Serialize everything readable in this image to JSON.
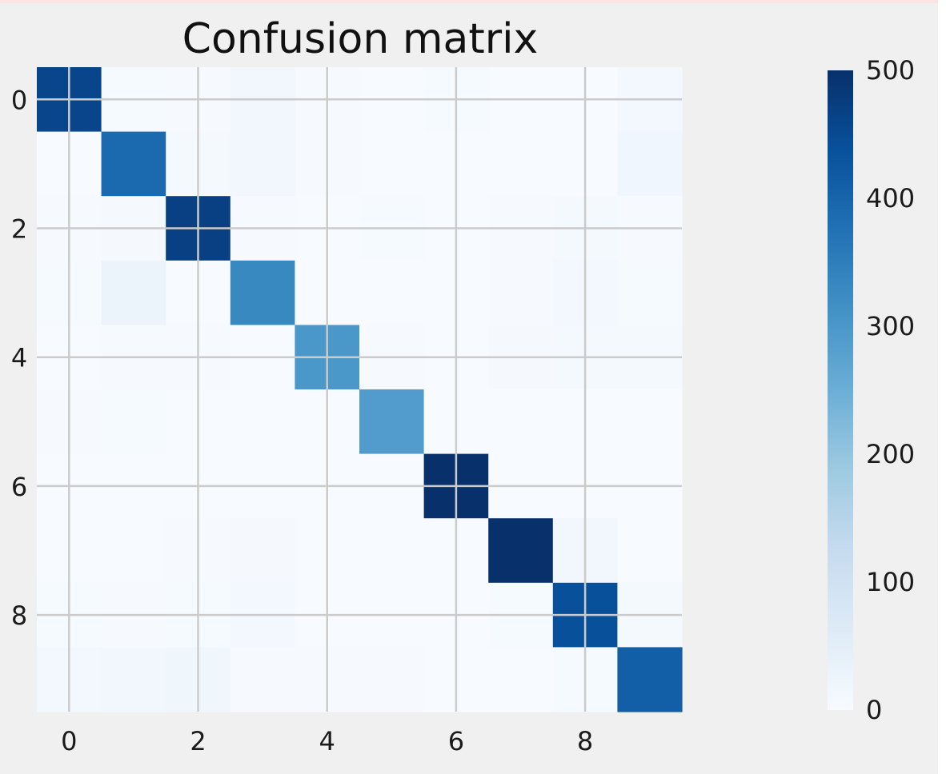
{
  "chart_data": {
    "type": "heatmap",
    "title": "Confusion matrix",
    "xlabel": "",
    "ylabel": "",
    "x_ticks": [
      "0",
      "2",
      "4",
      "6",
      "8"
    ],
    "y_ticks": [
      "0",
      "2",
      "4",
      "6",
      "8"
    ],
    "colorbar_ticks": [
      "0",
      "100",
      "200",
      "300",
      "400",
      "500"
    ],
    "colormap": "Blues",
    "vmin": 0,
    "vmax": 500,
    "grid": true,
    "matrix": [
      [
        460,
        5,
        3,
        14,
        2,
        1,
        4,
        0,
        0,
        12
      ],
      [
        0,
        390,
        8,
        16,
        3,
        0,
        0,
        0,
        0,
        18
      ],
      [
        2,
        6,
        470,
        2,
        0,
        4,
        0,
        3,
        8,
        2
      ],
      [
        5,
        30,
        1,
        330,
        0,
        1,
        0,
        2,
        12,
        4
      ],
      [
        1,
        3,
        2,
        0,
        300,
        3,
        1,
        6,
        8,
        7
      ],
      [
        2,
        4,
        0,
        1,
        1,
        290,
        1,
        0,
        1,
        1
      ],
      [
        1,
        1,
        1,
        1,
        1,
        1,
        510,
        0,
        0,
        0
      ],
      [
        1,
        1,
        2,
        6,
        1,
        1,
        1,
        515,
        14,
        0
      ],
      [
        5,
        2,
        4,
        10,
        1,
        1,
        0,
        4,
        440,
        8
      ],
      [
        10,
        16,
        20,
        2,
        2,
        2,
        0,
        1,
        4,
        410
      ]
    ]
  }
}
